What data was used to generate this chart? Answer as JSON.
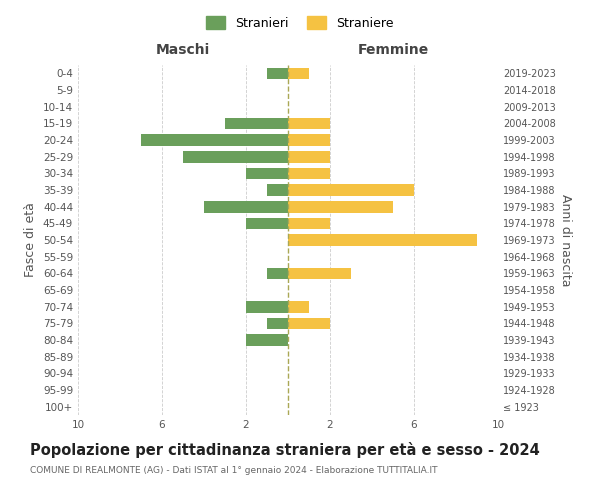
{
  "age_groups": [
    "100+",
    "95-99",
    "90-94",
    "85-89",
    "80-84",
    "75-79",
    "70-74",
    "65-69",
    "60-64",
    "55-59",
    "50-54",
    "45-49",
    "40-44",
    "35-39",
    "30-34",
    "25-29",
    "20-24",
    "15-19",
    "10-14",
    "5-9",
    "0-4"
  ],
  "birth_years": [
    "≤ 1923",
    "1924-1928",
    "1929-1933",
    "1934-1938",
    "1939-1943",
    "1944-1948",
    "1949-1953",
    "1954-1958",
    "1959-1963",
    "1964-1968",
    "1969-1973",
    "1974-1978",
    "1979-1983",
    "1984-1988",
    "1989-1993",
    "1994-1998",
    "1999-2003",
    "2004-2008",
    "2009-2013",
    "2014-2018",
    "2019-2023"
  ],
  "maschi": [
    0,
    0,
    0,
    0,
    2,
    1,
    2,
    0,
    1,
    0,
    0,
    2,
    4,
    1,
    2,
    5,
    7,
    3,
    0,
    0,
    1
  ],
  "femmine": [
    0,
    0,
    0,
    0,
    0,
    2,
    1,
    0,
    3,
    0,
    9,
    2,
    5,
    6,
    2,
    2,
    2,
    2,
    0,
    0,
    1
  ],
  "maschi_color": "#6a9f5b",
  "femmine_color": "#f5c242",
  "background_color": "#ffffff",
  "grid_color": "#cccccc",
  "title": "Popolazione per cittadinanza straniera per età e sesso - 2024",
  "subtitle": "COMUNE DI REALMONTE (AG) - Dati ISTAT al 1° gennaio 2024 - Elaborazione TUTTITALIA.IT",
  "ylabel_left": "Fasce di età",
  "ylabel_right": "Anni di nascita",
  "xlabel_maschi": "Maschi",
  "xlabel_femmine": "Femmine",
  "legend_maschi": "Stranieri",
  "legend_femmine": "Straniere",
  "xlim": 10,
  "bar_height": 0.7,
  "center_line_color": "#aaa855",
  "title_fontsize": 10.5,
  "subtitle_fontsize": 6.5,
  "label_fontsize": 9,
  "tick_fontsize": 7.5,
  "legend_fontsize": 9
}
